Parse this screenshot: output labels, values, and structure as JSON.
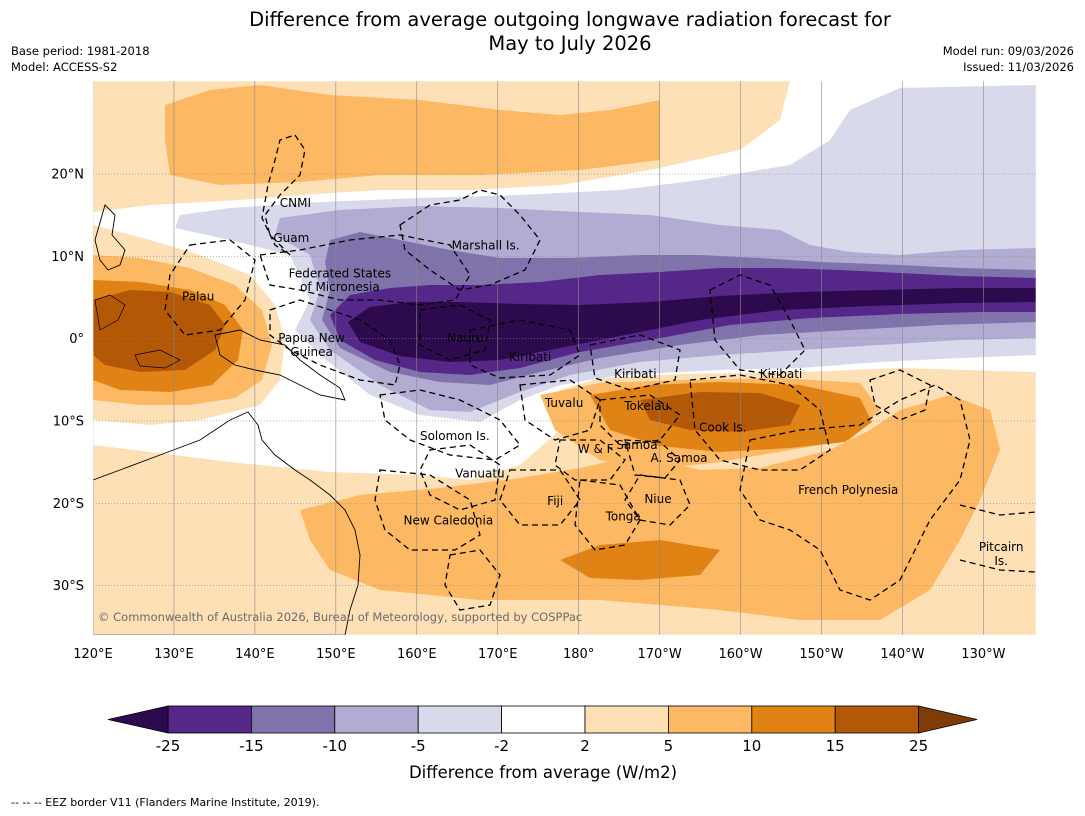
{
  "header": {
    "title_line1": "Difference from average outgoing longwave radiation forecast for",
    "title_line2": "May to July 2026",
    "base_period": "Base period: 1981-2018",
    "model": "Model: ACCESS-S2",
    "model_run": "Model run: 09/03/2026",
    "issued": "Issued: 11/03/2026"
  },
  "map": {
    "lon_labels": [
      "120°E",
      "130°E",
      "140°E",
      "150°E",
      "160°E",
      "170°E",
      "180°",
      "170°W",
      "160°W",
      "150°W",
      "140°W",
      "130°W"
    ],
    "lat_labels": [
      {
        "text": "20°N",
        "lat": 20
      },
      {
        "text": "10°N",
        "lat": 10
      },
      {
        "text": "0°",
        "lat": 0
      },
      {
        "text": "10°S",
        "lat": -10
      },
      {
        "text": "20°S",
        "lat": -20
      },
      {
        "text": "30°S",
        "lat": -30
      }
    ],
    "regions": [
      {
        "name": "CNMI",
        "lon": 145,
        "lat": 16.5
      },
      {
        "name": "Guam",
        "lon": 144.5,
        "lat": 12.2
      },
      {
        "name": "Marshall Is.",
        "lon": 168.5,
        "lat": 11.3
      },
      {
        "name": "Federated States",
        "lon": 150.5,
        "lat": 7.9
      },
      {
        "name": "of Micronesia",
        "lon": 150.5,
        "lat": 6.3
      },
      {
        "name": "Palau",
        "lon": 133,
        "lat": 5.1
      },
      {
        "name": "Papua New",
        "lon": 147,
        "lat": 0.1
      },
      {
        "name": "Guinea",
        "lon": 147,
        "lat": -1.6
      },
      {
        "name": "Nauru",
        "lon": 166,
        "lat": 0.1
      },
      {
        "name": "Kiribati",
        "lon": 174,
        "lat": -2.2
      },
      {
        "name": "Kiribati",
        "lon": -173,
        "lat": -4.3
      },
      {
        "name": "Kiribati",
        "lon": -155,
        "lat": -4.3
      },
      {
        "name": "Tuvalu",
        "lon": 178.2,
        "lat": -7.8
      },
      {
        "name": "Tokelau",
        "lon": -171.6,
        "lat": -8.2
      },
      {
        "name": "Cook Is.",
        "lon": -162.2,
        "lat": -10.8
      },
      {
        "name": "Solomon Is.",
        "lon": 164.7,
        "lat": -11.8
      },
      {
        "name": "W & F",
        "lon": -177.9,
        "lat": -13.4
      },
      {
        "name": "Samoa",
        "lon": -172.8,
        "lat": -12.9
      },
      {
        "name": "A. Samoa",
        "lon": -167.6,
        "lat": -14.5
      },
      {
        "name": "Vanuatu",
        "lon": 167.8,
        "lat": -16.4
      },
      {
        "name": "French Polynesia",
        "lon": -146.7,
        "lat": -18.4
      },
      {
        "name": "Fiji",
        "lon": 177.1,
        "lat": -19.7
      },
      {
        "name": "Niue",
        "lon": -170.2,
        "lat": -19.5
      },
      {
        "name": "Tonga",
        "lon": -174.5,
        "lat": -21.6
      },
      {
        "name": "New Caledonia",
        "lon": 163.9,
        "lat": -22.1
      },
      {
        "name": "Pitcairn",
        "lon": -127.8,
        "lat": -25.3
      },
      {
        "name": "Is.",
        "lon": -127.8,
        "lat": -27
      }
    ],
    "copyright": "© Commonwealth of Australia 2026, Bureau of Meteorology, supported by COSPPac"
  },
  "colorbar": {
    "bins": [
      {
        "label": "< -25",
        "color": "#2d0a4e"
      },
      {
        "label": "-25 to -15",
        "color": "#542788"
      },
      {
        "label": "-15 to -10",
        "color": "#8073ac"
      },
      {
        "label": "-10 to -5",
        "color": "#b2abd2"
      },
      {
        "label": "-5 to -2",
        "color": "#d8daeb"
      },
      {
        "label": "-2 to 2",
        "color": "#ffffff"
      },
      {
        "label": "2 to 5",
        "color": "#fee0b6"
      },
      {
        "label": "5 to 10",
        "color": "#fdb863"
      },
      {
        "label": "10 to 15",
        "color": "#e08214"
      },
      {
        "label": "15 to 25",
        "color": "#b35806"
      },
      {
        "label": "> 25",
        "color": "#7f3b08"
      }
    ],
    "ticks": [
      "-25",
      "-15",
      "-10",
      "-5",
      "-2",
      "2",
      "5",
      "10",
      "15",
      "25"
    ],
    "title": "Difference from average (W/m2)"
  },
  "footer": {
    "eez_legend": "--  --  -- EEZ border V11 (Flanders Marine Institute, 2019)."
  }
}
